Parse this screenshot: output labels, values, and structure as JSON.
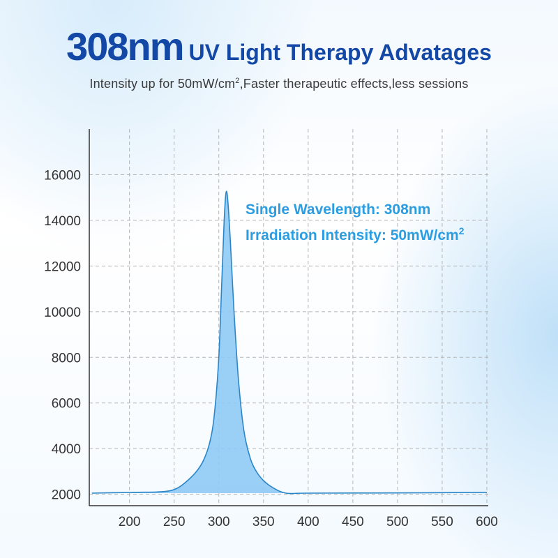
{
  "header": {
    "title_big": "308nm",
    "title_rest": "UV Light Therapy Advatages",
    "subtitle_pre": "Intensity up for 50mW/cm",
    "subtitle_sup": "2",
    "subtitle_post": ",Faster therapeutic effects,less sessions"
  },
  "annotation": {
    "line1": "Single Wavelength:  308nm",
    "line2_pre": "Irradiation Intensity: 50mW/cm",
    "line2_sup": "2"
  },
  "colors": {
    "title": "#1448a6",
    "annotation": "#2b9de0",
    "fill": "#8fcaf5",
    "stroke": "#2a86c8"
  },
  "chart_data": {
    "type": "area",
    "title": "",
    "xlabel": "",
    "ylabel": "",
    "xlim": [
      155,
      600
    ],
    "ylim": [
      1500,
      18000
    ],
    "grid": true,
    "x_ticks": [
      200,
      250,
      300,
      350,
      400,
      450,
      500,
      550,
      600
    ],
    "y_ticks": [
      2000,
      4000,
      6000,
      8000,
      10000,
      12000,
      14000,
      16000
    ],
    "series": [
      {
        "x": [
          158,
          200,
          230,
          245,
          255,
          265,
          275,
          283,
          290,
          295,
          300,
          303,
          306,
          308,
          310,
          313,
          317,
          322,
          328,
          335,
          342,
          350,
          360,
          375,
          400,
          500,
          600
        ],
        "y": [
          2050,
          2080,
          2100,
          2150,
          2300,
          2600,
          3000,
          3500,
          4300,
          5500,
          8000,
          11000,
          14000,
          15200,
          14900,
          13000,
          10000,
          7000,
          4800,
          3600,
          3000,
          2600,
          2300,
          2050,
          2050,
          2060,
          2080
        ]
      }
    ]
  }
}
